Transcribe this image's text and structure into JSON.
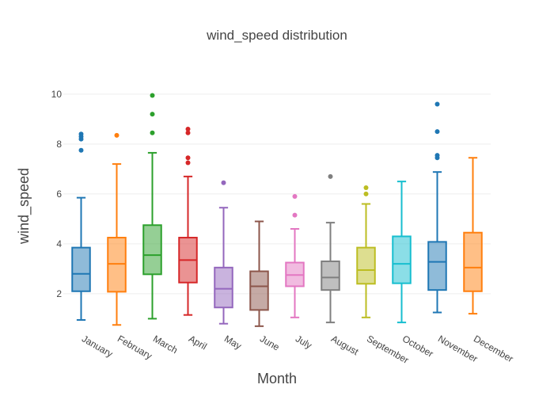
{
  "chart_data": {
    "type": "box",
    "title": "wind_speed distribution",
    "xlabel": "Month",
    "ylabel": "wind_speed",
    "ylim": [
      0.6,
      10.6
    ],
    "yticks": [
      2,
      4,
      6,
      8,
      10
    ],
    "grid": true,
    "legend": "none",
    "categories": [
      "January",
      "February",
      "March",
      "April",
      "May",
      "June",
      "July",
      "August",
      "September",
      "October",
      "November",
      "December"
    ],
    "boxes": [
      {
        "category": "January",
        "color": "#1f77b4",
        "min": 0.95,
        "q1": 2.1,
        "median": 2.8,
        "q3": 3.85,
        "max": 5.85,
        "outliers": [
          7.75,
          8.2,
          8.3,
          8.4
        ]
      },
      {
        "category": "February",
        "color": "#ff7f0e",
        "min": 0.75,
        "q1": 2.08,
        "median": 3.2,
        "q3": 4.25,
        "max": 7.2,
        "outliers": [
          8.35
        ]
      },
      {
        "category": "March",
        "color": "#2ca02c",
        "min": 1.0,
        "q1": 2.78,
        "median": 3.55,
        "q3": 4.75,
        "max": 7.65,
        "outliers": [
          8.45,
          9.2,
          9.95
        ]
      },
      {
        "category": "April",
        "color": "#d62728",
        "min": 1.15,
        "q1": 2.45,
        "median": 3.35,
        "q3": 4.25,
        "max": 6.7,
        "outliers": [
          7.25,
          7.45,
          8.45,
          8.6
        ]
      },
      {
        "category": "May",
        "color": "#9467bd",
        "min": 0.8,
        "q1": 1.45,
        "median": 2.2,
        "q3": 3.05,
        "max": 5.45,
        "outliers": [
          6.45
        ]
      },
      {
        "category": "June",
        "color": "#8c564b",
        "min": 0.7,
        "q1": 1.35,
        "median": 2.3,
        "q3": 2.9,
        "max": 4.9,
        "outliers": []
      },
      {
        "category": "July",
        "color": "#e377c2",
        "min": 1.05,
        "q1": 2.3,
        "median": 2.75,
        "q3": 3.25,
        "max": 4.6,
        "outliers": [
          5.15,
          5.9
        ]
      },
      {
        "category": "August",
        "color": "#7f7f7f",
        "min": 0.85,
        "q1": 2.15,
        "median": 2.65,
        "q3": 3.3,
        "max": 4.85,
        "outliers": [
          6.7
        ]
      },
      {
        "category": "September",
        "color": "#bcbd22",
        "min": 1.05,
        "q1": 2.4,
        "median": 2.95,
        "q3": 3.85,
        "max": 5.6,
        "outliers": [
          6.0,
          6.25
        ]
      },
      {
        "category": "October",
        "color": "#17becf",
        "min": 0.85,
        "q1": 2.42,
        "median": 3.2,
        "q3": 4.3,
        "max": 6.5,
        "outliers": []
      },
      {
        "category": "November",
        "color": "#1f77b4",
        "min": 1.25,
        "q1": 2.15,
        "median": 3.28,
        "q3": 4.08,
        "max": 6.88,
        "outliers": [
          7.45,
          7.55,
          8.5,
          9.6
        ]
      },
      {
        "category": "December",
        "color": "#ff7f0e",
        "min": 1.2,
        "q1": 2.1,
        "median": 3.05,
        "q3": 4.45,
        "max": 7.45,
        "outliers": []
      }
    ]
  }
}
